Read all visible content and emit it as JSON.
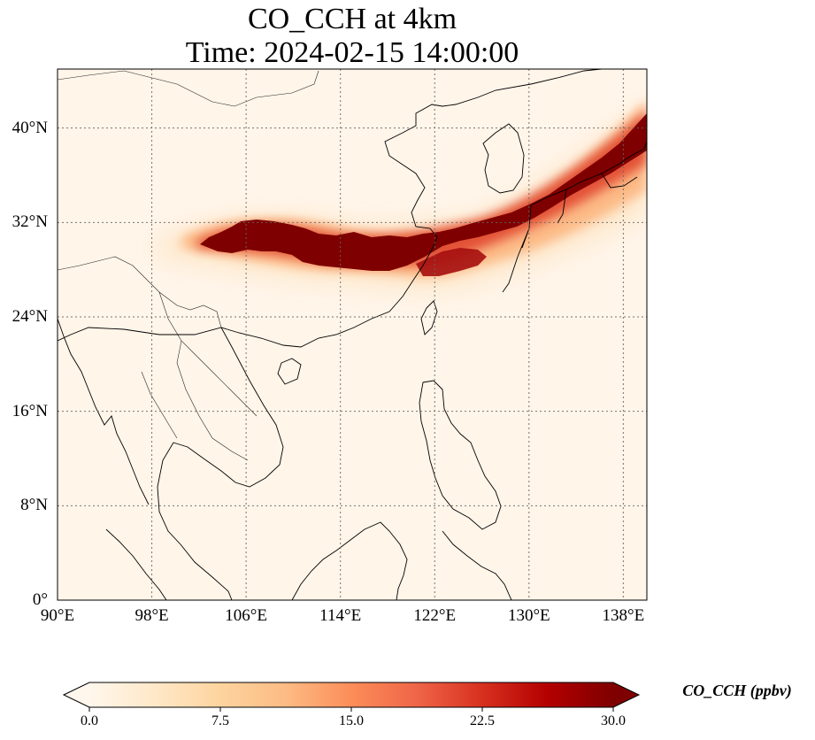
{
  "title": {
    "line1": "CO_CCH at 4km",
    "line2": "Time: 2024-02-15 14:00:00"
  },
  "map": {
    "projection": "PlateCarree",
    "lon_range": [
      90,
      140
    ],
    "lat_range": [
      0,
      45
    ],
    "lon_ticks": [
      {
        "value": 90,
        "label": "90°E"
      },
      {
        "value": 98,
        "label": "98°E"
      },
      {
        "value": 106,
        "label": "106°E"
      },
      {
        "value": 114,
        "label": "114°E"
      },
      {
        "value": 122,
        "label": "122°E"
      },
      {
        "value": 130,
        "label": "130°E"
      },
      {
        "value": 138,
        "label": "138°E"
      }
    ],
    "lat_ticks": [
      {
        "value": 0,
        "label": "0°"
      },
      {
        "value": 8,
        "label": "8°N"
      },
      {
        "value": 16,
        "label": "16°N"
      },
      {
        "value": 24,
        "label": "24°N"
      },
      {
        "value": 32,
        "label": "32°N"
      },
      {
        "value": 40,
        "label": "40°N"
      }
    ],
    "gridlines": "dotted",
    "plume": {
      "description_values_ppbv": "plume of elevated CO_CCH from ~102°E,30°N east to ~140°E,41°N",
      "core": [
        [
          102.5,
          30.2
        ],
        [
          108,
          31.5
        ],
        [
          114,
          31
        ],
        [
          118,
          30
        ],
        [
          121,
          30.3
        ],
        [
          124,
          30.4
        ],
        [
          128,
          31.2
        ],
        [
          132,
          32.4
        ],
        [
          136,
          36
        ],
        [
          140,
          41
        ]
      ],
      "core_value": 30,
      "background_value": 1
    }
  },
  "colorbar": {
    "label": "CO_CCH (ppbv)",
    "min": 0,
    "max": 30,
    "extend": "both",
    "ticks": [
      "0.0",
      "7.5",
      "15.0",
      "22.5",
      "30.0"
    ],
    "colormap": [
      "#fff7ec",
      "#fee8c8",
      "#fdd49e",
      "#fdbb84",
      "#fc8d59",
      "#ef6548",
      "#d7301f",
      "#b30000",
      "#7f0000"
    ]
  }
}
